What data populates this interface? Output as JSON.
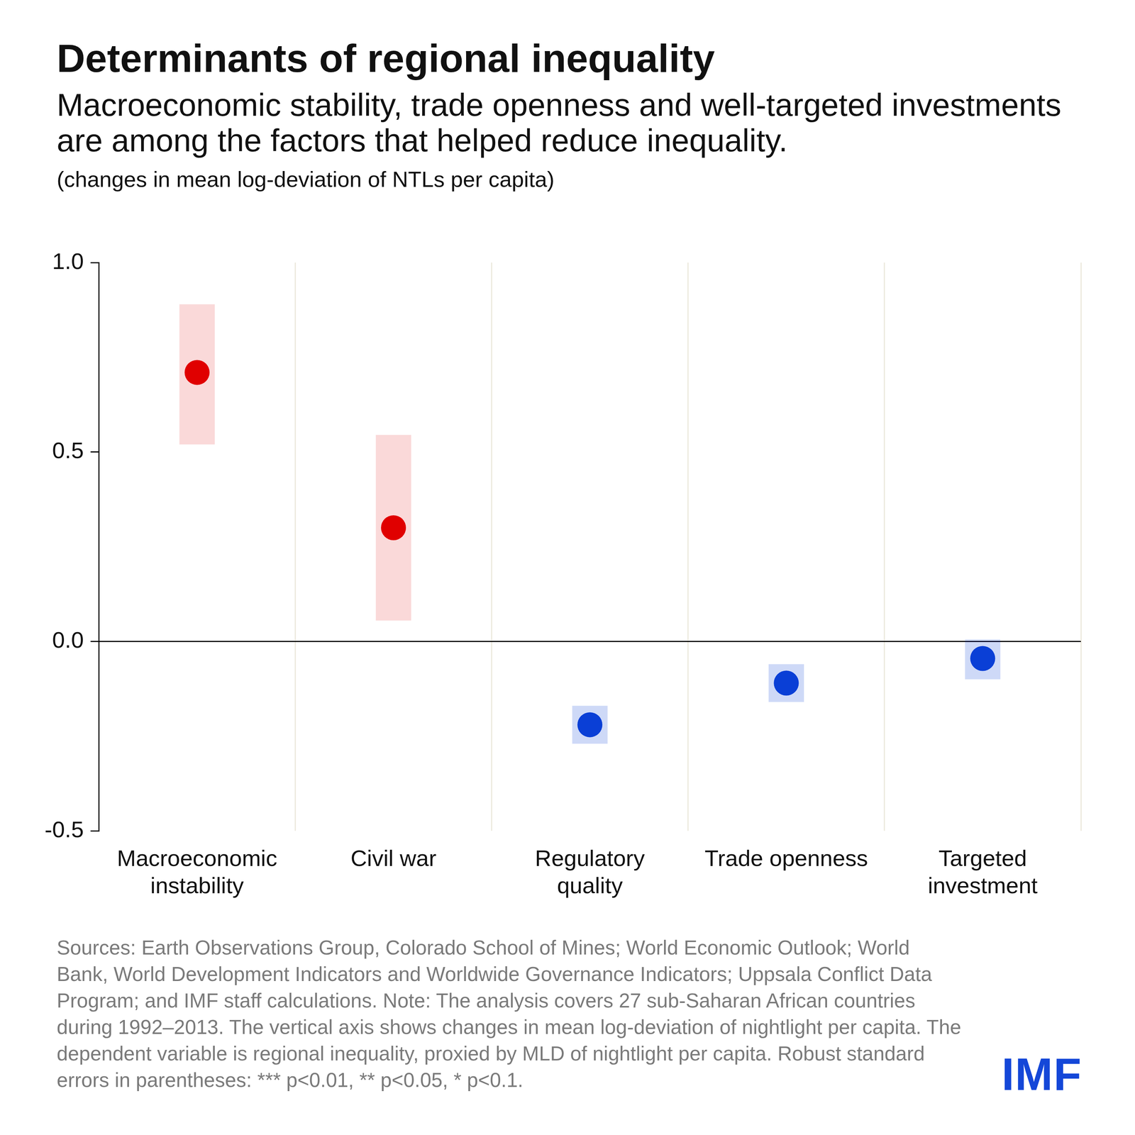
{
  "chart_data": {
    "type": "dot_range",
    "title": "Determinants of regional inequality",
    "subtitle": "Macroeconomic stability, trade openness and well-targeted investments are among the factors that helped reduce inequality.",
    "unit_note": "(changes in mean log-deviation of NTLs per capita)",
    "categories": [
      [
        "Macroeconomic",
        "instability"
      ],
      "Civil war",
      [
        "Regulatory",
        "quality"
      ],
      "Trade openness",
      [
        "Targeted",
        "investment"
      ]
    ],
    "values": [
      0.71,
      0.3,
      -0.22,
      -0.11,
      -0.045
    ],
    "ci_low": [
      0.52,
      0.055,
      -0.27,
      -0.16,
      -0.1
    ],
    "ci_high": [
      0.89,
      0.545,
      -0.17,
      -0.06,
      0.005
    ],
    "colors": [
      "#e00000",
      "#e00000",
      "#0a3fd6",
      "#0a3fd6",
      "#0a3fd6"
    ],
    "ylim": [
      -0.5,
      1.0
    ],
    "yticks": [
      -0.5,
      {
        "value": 0,
        "label": "0.0"
      },
      0.5,
      {
        "value": 1,
        "label": "1.0"
      }
    ],
    "grid": true,
    "source": "Sources: Earth Observations Group, Colorado School of Mines; World Economic Outlook; World Bank, World Development Indicators and Worldwide Governance Indicators; Uppsala Conflict Data Program; and IMF staff calculations. Note: The analysis covers 27 sub-Saharan African countries during 1992–2013. The vertical axis shows changes in mean log-deviation of nightlight per capita. The dependent variable is regional inequality, proxied by MLD of nightlight per capita. Robust standard errors in parentheses: *** p<0.01, ** p<0.05, * p<0.1.",
    "logo": "IMF"
  }
}
